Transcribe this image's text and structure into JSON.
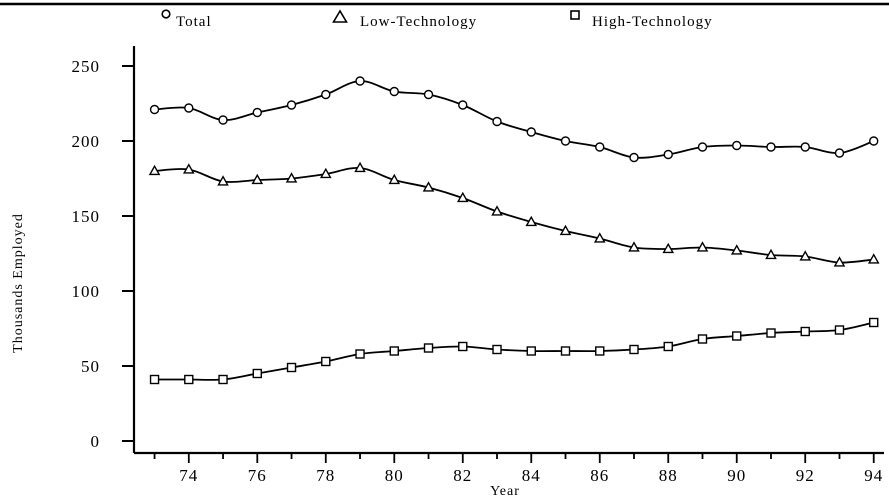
{
  "chart_data": {
    "type": "line",
    "title": "",
    "xlabel": "Year",
    "ylabel": "Thousands Employed",
    "x": [
      73,
      74,
      75,
      76,
      77,
      78,
      79,
      80,
      81,
      82,
      83,
      84,
      85,
      86,
      87,
      88,
      89,
      90,
      91,
      92,
      93,
      94
    ],
    "x_tick_values": [
      74,
      76,
      78,
      80,
      82,
      84,
      86,
      88,
      90,
      92,
      94
    ],
    "x_tick_labels": [
      "74",
      "76",
      "78",
      "80",
      "82",
      "84",
      "86",
      "88",
      "90",
      "92",
      "94"
    ],
    "y_tick_values": [
      0,
      50,
      100,
      150,
      200,
      250
    ],
    "y_tick_labels": [
      "0",
      "50",
      "100",
      "150",
      "200",
      "250"
    ],
    "xlim": [
      72.4,
      94.3
    ],
    "ylim": [
      -8,
      262
    ],
    "grid": false,
    "legend_position": "top",
    "series": [
      {
        "name": "Total",
        "marker": "circle",
        "values": [
          221,
          222,
          214,
          219,
          224,
          231,
          240,
          233,
          231,
          224,
          213,
          206,
          200,
          196,
          189,
          191,
          196,
          197,
          196,
          196,
          192,
          200
        ]
      },
      {
        "name": "Low-Technology",
        "marker": "triangle",
        "values": [
          180,
          181,
          173,
          174,
          175,
          178,
          182,
          174,
          169,
          162,
          153,
          146,
          140,
          135,
          129,
          128,
          129,
          127,
          124,
          123,
          119,
          121
        ]
      },
      {
        "name": "High-Technology",
        "marker": "square",
        "values": [
          41,
          41,
          41,
          45,
          49,
          53,
          58,
          60,
          62,
          63,
          61,
          60,
          60,
          60,
          61,
          63,
          68,
          70,
          72,
          73,
          74,
          79
        ]
      }
    ]
  }
}
